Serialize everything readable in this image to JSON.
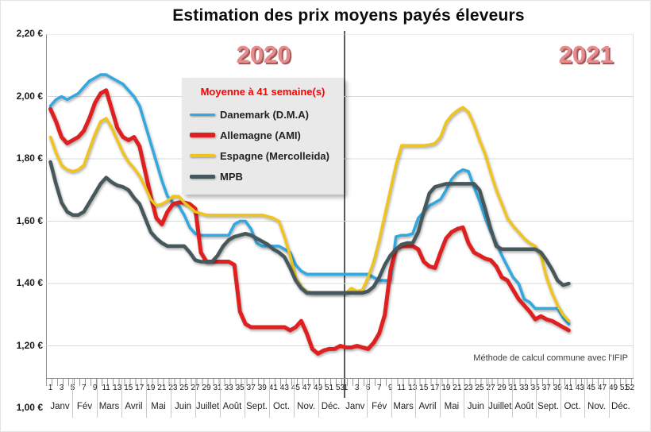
{
  "title": "Estimation des prix moyens payés éleveurs",
  "years": [
    {
      "label": "2020"
    },
    {
      "label": "2021"
    }
  ],
  "note": "Méthode de calcul commune avec l'IFIP",
  "colors": {
    "danemark": "#31a8e0",
    "allemagne": "#df2020",
    "espagne": "#f0c41d",
    "mpb": "#46585c",
    "year_label": "#e78c8c",
    "legend_title_red": "#fe0000",
    "gridline": "#d9d9d9",
    "divider": "#5a5a5a"
  },
  "legend": {
    "title": "Moyenne à  41 semaine(s)",
    "items": [
      {
        "label": "Danemark (D.M.A)",
        "color": "#31a8e0",
        "thickness": 3
      },
      {
        "label": "Allemagne (AMI)",
        "color": "#df2020",
        "thickness": 6
      },
      {
        "label": "Espagne (Mercolleida)",
        "color": "#f0c41d",
        "thickness": 4
      },
      {
        "label": "MPB",
        "color": "#46585c",
        "thickness": 5
      }
    ]
  },
  "y_axis": {
    "labels": [
      "2,20 €",
      "2,00 €",
      "1,80 €",
      "1,60 €",
      "1,40 €",
      "1,20 €",
      "1,00 €"
    ],
    "min": 1.0,
    "max": 2.2,
    "step": 0.2,
    "unit": "€"
  },
  "x_axis": {
    "week_labels_2020": [
      "1",
      "3",
      "5",
      "7",
      "9",
      "11",
      "13",
      "15",
      "17",
      "19",
      "21",
      "23",
      "25",
      "27",
      "29",
      "31",
      "33",
      "35",
      "37",
      "39",
      "41",
      "43",
      "45",
      "47",
      "49",
      "51",
      "53"
    ],
    "week_labels_2021": [
      "1",
      "3",
      "5",
      "7",
      "9",
      "11",
      "13",
      "15",
      "17",
      "19",
      "21",
      "23",
      "25",
      "27",
      "29",
      "31",
      "33",
      "35",
      "37",
      "39",
      "41",
      "43",
      "45",
      "47",
      "49",
      "51",
      "52"
    ],
    "months": [
      "Janv",
      "Fév",
      "Mars",
      "Avril",
      "Mai",
      "Juin",
      "Juillet",
      "Août",
      "Sept.",
      "Oct.",
      "Nov.",
      "Déc."
    ]
  },
  "chart_data": {
    "type": "line",
    "x_description": "Weeks 1-53 of 2020 followed by weeks 1-52 of 2021; data plotted through week 41 of 2021",
    "weeks_2020": 53,
    "weeks_2021": 52,
    "data_through_2021_week": 41,
    "ylim": [
      1.0,
      2.2
    ],
    "grid": "horizontal",
    "legend_position": "upper-left-box",
    "series": [
      {
        "name": "Danemark (D.M.A)",
        "color": "#31a8e0",
        "values": [
          1.97,
          1.99,
          2.0,
          1.99,
          2.0,
          2.01,
          2.03,
          2.05,
          2.06,
          2.07,
          2.07,
          2.06,
          2.05,
          2.04,
          2.02,
          2.0,
          1.97,
          1.91,
          1.85,
          1.79,
          1.73,
          1.68,
          1.66,
          1.65,
          1.62,
          1.58,
          1.56,
          1.555,
          1.555,
          1.555,
          1.555,
          1.555,
          1.555,
          1.59,
          1.6,
          1.6,
          1.575,
          1.53,
          1.52,
          1.52,
          1.52,
          1.52,
          1.51,
          1.5,
          1.46,
          1.44,
          1.43,
          1.43,
          1.43,
          1.43,
          1.43,
          1.43,
          1.43,
          1.43,
          1.43,
          1.43,
          1.43,
          1.43,
          1.42,
          1.41,
          1.41,
          1.41,
          1.55,
          1.555,
          1.555,
          1.56,
          1.61,
          1.63,
          1.65,
          1.66,
          1.67,
          1.7,
          1.735,
          1.755,
          1.765,
          1.76,
          1.71,
          1.665,
          1.61,
          1.565,
          1.53,
          1.49,
          1.455,
          1.42,
          1.4,
          1.35,
          1.34,
          1.32,
          1.32,
          1.32,
          1.32,
          1.32,
          1.29,
          1.27
        ]
      },
      {
        "name": "Allemagne (AMI)",
        "color": "#df2020",
        "values": [
          1.96,
          1.92,
          1.87,
          1.85,
          1.86,
          1.87,
          1.89,
          1.93,
          1.98,
          2.01,
          2.02,
          1.96,
          1.9,
          1.87,
          1.86,
          1.87,
          1.84,
          1.76,
          1.68,
          1.61,
          1.59,
          1.63,
          1.655,
          1.66,
          1.66,
          1.655,
          1.64,
          1.5,
          1.47,
          1.47,
          1.47,
          1.47,
          1.47,
          1.46,
          1.31,
          1.27,
          1.26,
          1.26,
          1.26,
          1.26,
          1.26,
          1.26,
          1.26,
          1.25,
          1.26,
          1.28,
          1.24,
          1.19,
          1.175,
          1.185,
          1.19,
          1.19,
          1.2,
          1.195,
          1.195,
          1.2,
          1.195,
          1.19,
          1.21,
          1.24,
          1.3,
          1.44,
          1.51,
          1.52,
          1.52,
          1.52,
          1.51,
          1.47,
          1.455,
          1.45,
          1.5,
          1.545,
          1.565,
          1.575,
          1.58,
          1.53,
          1.5,
          1.49,
          1.48,
          1.475,
          1.455,
          1.42,
          1.41,
          1.38,
          1.35,
          1.33,
          1.31,
          1.285,
          1.295,
          1.285,
          1.28,
          1.27,
          1.26,
          1.25
        ]
      },
      {
        "name": "Espagne (Mercolleida)",
        "color": "#f0c41d",
        "values": [
          1.87,
          1.82,
          1.78,
          1.765,
          1.76,
          1.765,
          1.78,
          1.83,
          1.88,
          1.92,
          1.93,
          1.9,
          1.86,
          1.82,
          1.79,
          1.77,
          1.745,
          1.71,
          1.67,
          1.65,
          1.655,
          1.665,
          1.68,
          1.68,
          1.66,
          1.645,
          1.63,
          1.625,
          1.62,
          1.62,
          1.62,
          1.62,
          1.62,
          1.62,
          1.62,
          1.62,
          1.62,
          1.62,
          1.62,
          1.615,
          1.61,
          1.6,
          1.55,
          1.49,
          1.42,
          1.39,
          1.375,
          1.37,
          1.37,
          1.37,
          1.37,
          1.37,
          1.37,
          1.37,
          1.385,
          1.375,
          1.38,
          1.42,
          1.47,
          1.54,
          1.62,
          1.7,
          1.78,
          1.843,
          1.843,
          1.843,
          1.843,
          1.843,
          1.845,
          1.85,
          1.87,
          1.917,
          1.94,
          1.955,
          1.965,
          1.95,
          1.91,
          1.86,
          1.815,
          1.755,
          1.7,
          1.655,
          1.61,
          1.585,
          1.565,
          1.545,
          1.53,
          1.52,
          1.49,
          1.42,
          1.37,
          1.33,
          1.3,
          1.28
        ]
      },
      {
        "name": "MPB",
        "color": "#46585c",
        "values": [
          1.79,
          1.72,
          1.66,
          1.63,
          1.62,
          1.62,
          1.63,
          1.66,
          1.69,
          1.72,
          1.74,
          1.725,
          1.715,
          1.71,
          1.7,
          1.675,
          1.655,
          1.61,
          1.565,
          1.545,
          1.53,
          1.52,
          1.52,
          1.52,
          1.52,
          1.5,
          1.475,
          1.47,
          1.47,
          1.47,
          1.49,
          1.52,
          1.54,
          1.55,
          1.555,
          1.56,
          1.555,
          1.545,
          1.535,
          1.525,
          1.51,
          1.5,
          1.485,
          1.45,
          1.41,
          1.385,
          1.37,
          1.37,
          1.37,
          1.37,
          1.37,
          1.37,
          1.37,
          1.37,
          1.37,
          1.37,
          1.37,
          1.375,
          1.39,
          1.42,
          1.46,
          1.49,
          1.51,
          1.525,
          1.53,
          1.53,
          1.565,
          1.63,
          1.69,
          1.71,
          1.715,
          1.72,
          1.72,
          1.72,
          1.72,
          1.72,
          1.72,
          1.7,
          1.64,
          1.575,
          1.52,
          1.51,
          1.51,
          1.51,
          1.51,
          1.51,
          1.51,
          1.51,
          1.5,
          1.475,
          1.445,
          1.41,
          1.395,
          1.4
        ]
      }
    ]
  }
}
